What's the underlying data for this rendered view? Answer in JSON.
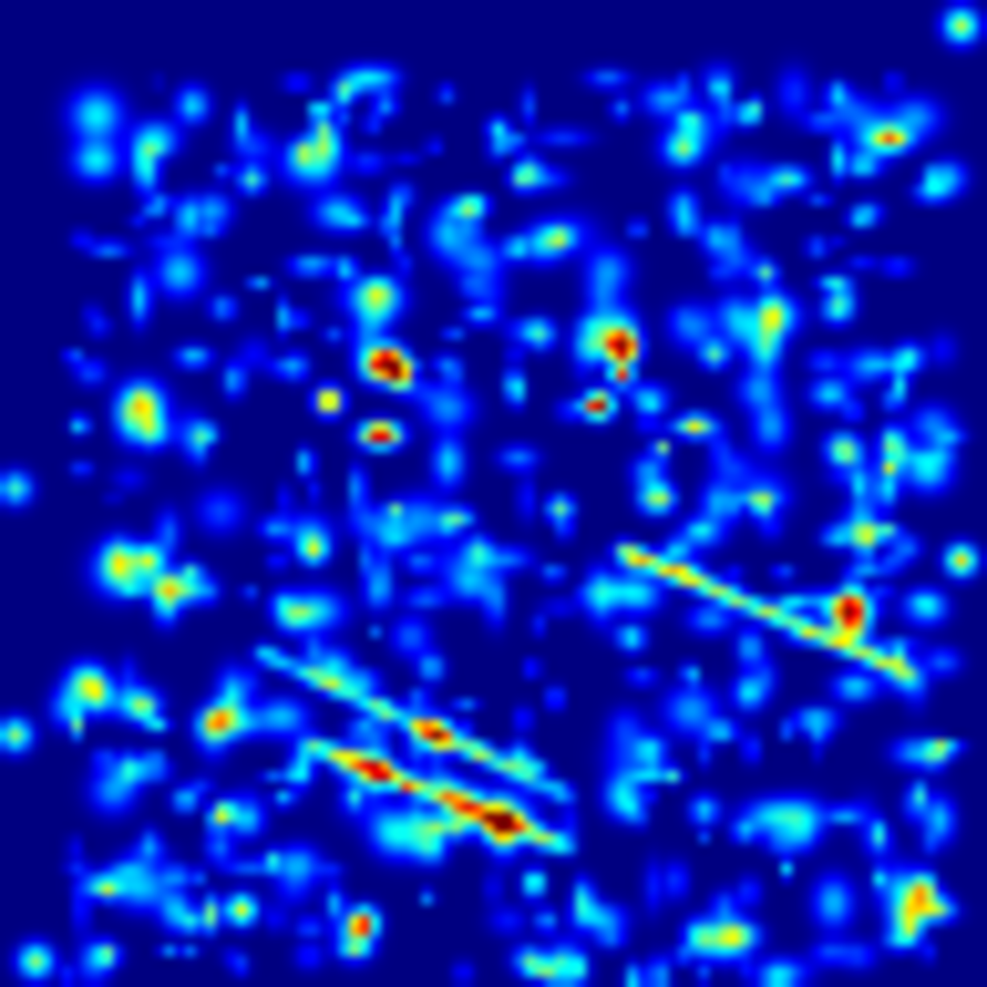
{
  "image": {
    "kind": "saliency-heatmap",
    "colormap": "jet",
    "colors": {
      "background": "#00007f",
      "low": "#0000ff",
      "mid": "#00ffff",
      "high": "#ffff00",
      "peak": "#ff0000"
    },
    "labels": []
  }
}
